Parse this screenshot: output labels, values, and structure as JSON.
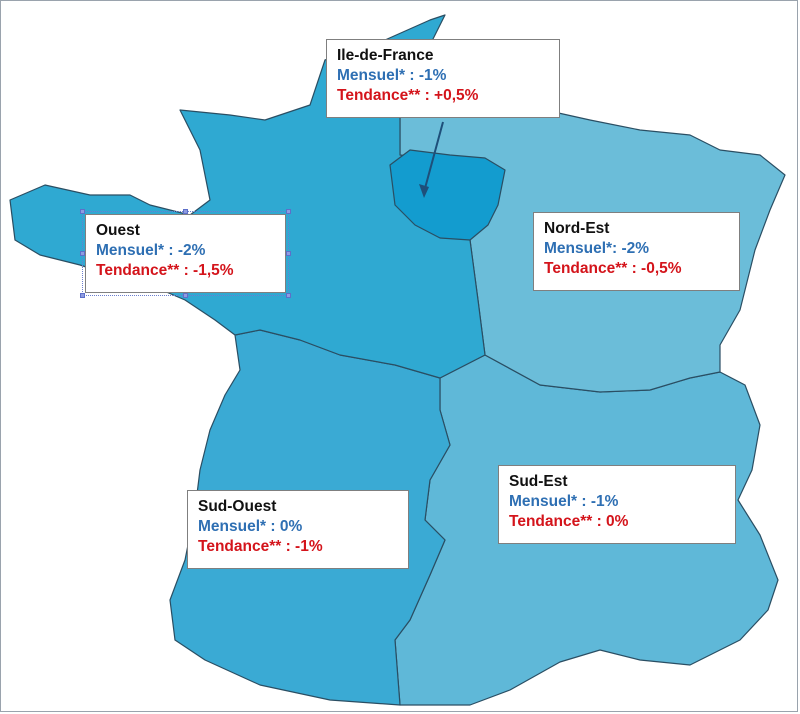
{
  "colors": {
    "region_ouest": "#2fa9d2",
    "region_idf": "#139ccf",
    "region_nord_est": "#6bbdd9",
    "region_sud_ouest": "#3aaad4",
    "region_sud_est": "#5fb8d8",
    "border": "#2a4e63",
    "mensuel_text": "#2e6fb3",
    "tendance_text": "#d4141b"
  },
  "regions": [
    {
      "key": "idf",
      "name": "Ile-de-France",
      "mensuel": "Mensuel* : -1%",
      "tendance": "Tendance** : +0,5%"
    },
    {
      "key": "ouest",
      "name": "Ouest",
      "mensuel": "Mensuel* : -2%",
      "tendance": "Tendance** : -1,5%"
    },
    {
      "key": "nord_est",
      "name": "Nord-Est",
      "mensuel": "Mensuel*: -2%",
      "tendance": "Tendance** : -0,5%"
    },
    {
      "key": "sud_est",
      "name": "Sud-Est",
      "mensuel": "Mensuel* : -1%",
      "tendance": "Tendance** : 0%"
    },
    {
      "key": "sud_ouest",
      "name": "Sud-Ouest",
      "mensuel": "Mensuel* : 0%",
      "tendance": "Tendance** : -1%"
    }
  ]
}
